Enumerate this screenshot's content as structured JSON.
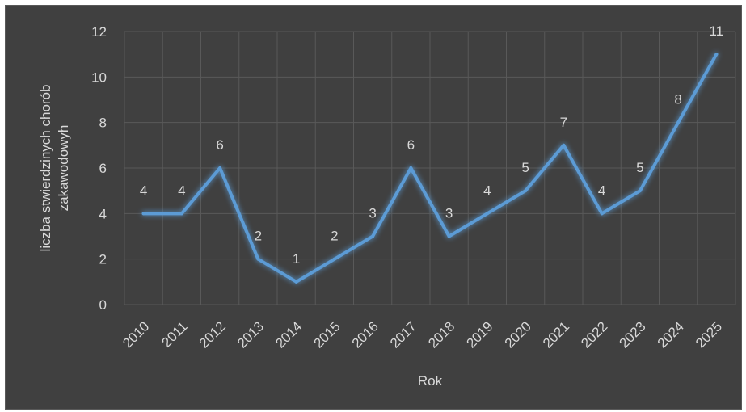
{
  "chart_data": {
    "type": "line",
    "title": "",
    "xlabel": "Rok",
    "ylabel": [
      "liczba stwierdzinych chorób",
      "zakawodowyh"
    ],
    "categories": [
      "2010",
      "2011",
      "2012",
      "2013",
      "2014",
      "2015",
      "2016",
      "2017",
      "2018",
      "2019",
      "2020",
      "2021",
      "2022",
      "2023",
      "2024",
      "2025"
    ],
    "series": [
      {
        "values": [
          4,
          4,
          6,
          2,
          1,
          2,
          3,
          6,
          3,
          4,
          5,
          7,
          4,
          5,
          8,
          11
        ],
        "color": "#5b9bd5"
      }
    ],
    "ylim": [
      0,
      12
    ],
    "yticks": [
      0,
      2,
      4,
      6,
      8,
      10,
      12
    ],
    "grid": true,
    "data_labels": true,
    "background": "#404040",
    "gridline_color": "#595959"
  }
}
